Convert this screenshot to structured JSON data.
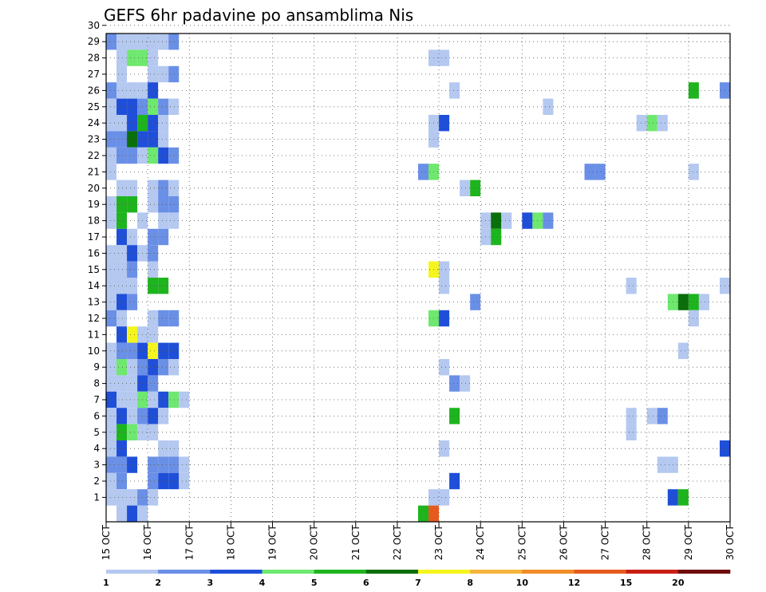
{
  "chart_data": {
    "type": "heatmap",
    "title": "GEFS 6hr padavine po ansamblima Nis",
    "xlabel": "",
    "ylabel": "",
    "x_ticks": [
      "15 OCT",
      "16 OCT",
      "17 OCT",
      "18 OCT",
      "19 OCT",
      "20 OCT",
      "21 OCT",
      "22 OCT",
      "23 OCT",
      "24 OCT",
      "25 OCT",
      "26 OCT",
      "27 OCT",
      "28 OCT",
      "29 OCT",
      "30 OCT"
    ],
    "y_ticks": [
      "1",
      "2",
      "3",
      "4",
      "5",
      "6",
      "7",
      "8",
      "9",
      "10",
      "11",
      "12",
      "13",
      "14",
      "15",
      "16",
      "17",
      "18",
      "19",
      "20",
      "21",
      "22",
      "23",
      "24",
      "25",
      "26",
      "27",
      "28",
      "29",
      "30"
    ],
    "xlim": [
      0,
      60
    ],
    "ylim": [
      0,
      30
    ],
    "grid": true,
    "legend_placement": "bottom",
    "colorbar": {
      "labels": [
        "1",
        "2",
        "3",
        "4",
        "5",
        "6",
        "7",
        "8",
        "10",
        "12",
        "15",
        "20"
      ],
      "colors": [
        "#b4c8f0",
        "#6a8fe6",
        "#1f4fd8",
        "#6ee86e",
        "#1eb41e",
        "#0a6e0a",
        "#f5f51e",
        "#f5b43c",
        "#f08c28",
        "#e65a1e",
        "#c81e14",
        "#6e0a0a"
      ]
    },
    "cells": [
      [
        0,
        29,
        1
      ],
      [
        1,
        29,
        1
      ],
      [
        2,
        29,
        2
      ],
      [
        3,
        29,
        2
      ],
      [
        4,
        29,
        3
      ],
      [
        5,
        29,
        2
      ],
      [
        6,
        29,
        1
      ],
      [
        0,
        28,
        2
      ],
      [
        1,
        28,
        1
      ],
      [
        2,
        28,
        1
      ],
      [
        3,
        28,
        1
      ],
      [
        4,
        28,
        1
      ],
      [
        5,
        28,
        1
      ],
      [
        6,
        28,
        2
      ],
      [
        1,
        27,
        1
      ],
      [
        2,
        27,
        4
      ],
      [
        3,
        27,
        4
      ],
      [
        4,
        27,
        1
      ],
      [
        31,
        27,
        1
      ],
      [
        32,
        27,
        1
      ],
      [
        1,
        26,
        1
      ],
      [
        4,
        26,
        1
      ],
      [
        5,
        26,
        1
      ],
      [
        6,
        26,
        2
      ],
      [
        0,
        25,
        2
      ],
      [
        1,
        25,
        1
      ],
      [
        2,
        25,
        1
      ],
      [
        3,
        25,
        1
      ],
      [
        4,
        25,
        3
      ],
      [
        33,
        25,
        1
      ],
      [
        56,
        25,
        5
      ],
      [
        59,
        25,
        2
      ],
      [
        0,
        24,
        1
      ],
      [
        1,
        24,
        3
      ],
      [
        2,
        24,
        3
      ],
      [
        3,
        24,
        2
      ],
      [
        4,
        24,
        4
      ],
      [
        5,
        24,
        2
      ],
      [
        6,
        24,
        1
      ],
      [
        42,
        24,
        1
      ],
      [
        0,
        23,
        1
      ],
      [
        1,
        23,
        1
      ],
      [
        2,
        23,
        3
      ],
      [
        3,
        23,
        5
      ],
      [
        4,
        23,
        3
      ],
      [
        5,
        23,
        1
      ],
      [
        31,
        23,
        1
      ],
      [
        32,
        23,
        3
      ],
      [
        51,
        23,
        1
      ],
      [
        52,
        23,
        4
      ],
      [
        53,
        23,
        1
      ],
      [
        0,
        22,
        2
      ],
      [
        1,
        22,
        2
      ],
      [
        2,
        22,
        6
      ],
      [
        3,
        22,
        3
      ],
      [
        4,
        22,
        3
      ],
      [
        5,
        22,
        1
      ],
      [
        31,
        22,
        1
      ],
      [
        0,
        21,
        1
      ],
      [
        1,
        21,
        2
      ],
      [
        2,
        21,
        2
      ],
      [
        3,
        21,
        1
      ],
      [
        4,
        21,
        4
      ],
      [
        5,
        21,
        3
      ],
      [
        6,
        21,
        2
      ],
      [
        0,
        20,
        1
      ],
      [
        30,
        20,
        2
      ],
      [
        31,
        20,
        4
      ],
      [
        46,
        20,
        2
      ],
      [
        47,
        20,
        2
      ],
      [
        56,
        20,
        1
      ],
      [
        1,
        19,
        1
      ],
      [
        2,
        19,
        1
      ],
      [
        4,
        19,
        1
      ],
      [
        5,
        19,
        2
      ],
      [
        6,
        19,
        1
      ],
      [
        34,
        19,
        1
      ],
      [
        35,
        19,
        5
      ],
      [
        0,
        18,
        1
      ],
      [
        1,
        18,
        5
      ],
      [
        2,
        18,
        5
      ],
      [
        4,
        18,
        1
      ],
      [
        5,
        18,
        2
      ],
      [
        6,
        18,
        2
      ],
      [
        0,
        17,
        1
      ],
      [
        1,
        17,
        5
      ],
      [
        3,
        17,
        1
      ],
      [
        5,
        17,
        1
      ],
      [
        6,
        17,
        1
      ],
      [
        36,
        17,
        1
      ],
      [
        37,
        17,
        6
      ],
      [
        38,
        17,
        1
      ],
      [
        40,
        17,
        3
      ],
      [
        41,
        17,
        4
      ],
      [
        42,
        17,
        2
      ],
      [
        1,
        16,
        3
      ],
      [
        2,
        16,
        1
      ],
      [
        4,
        16,
        2
      ],
      [
        5,
        16,
        2
      ],
      [
        36,
        16,
        1
      ],
      [
        37,
        16,
        5
      ],
      [
        0,
        15,
        1
      ],
      [
        1,
        15,
        1
      ],
      [
        2,
        15,
        3
      ],
      [
        3,
        15,
        1
      ],
      [
        4,
        15,
        2
      ],
      [
        0,
        14,
        1
      ],
      [
        1,
        14,
        1
      ],
      [
        2,
        14,
        2
      ],
      [
        4,
        14,
        1
      ],
      [
        31,
        14,
        7
      ],
      [
        32,
        14,
        1
      ],
      [
        0,
        13,
        1
      ],
      [
        1,
        13,
        1
      ],
      [
        2,
        13,
        1
      ],
      [
        4,
        13,
        5
      ],
      [
        5,
        13,
        5
      ],
      [
        32,
        13,
        1
      ],
      [
        50,
        13,
        1
      ],
      [
        59,
        13,
        1
      ],
      [
        0,
        12,
        1
      ],
      [
        1,
        12,
        3
      ],
      [
        2,
        12,
        2
      ],
      [
        35,
        12,
        2
      ],
      [
        54,
        12,
        4
      ],
      [
        55,
        12,
        6
      ],
      [
        56,
        12,
        5
      ],
      [
        57,
        12,
        1
      ],
      [
        0,
        11,
        2
      ],
      [
        1,
        11,
        1
      ],
      [
        4,
        11,
        1
      ],
      [
        5,
        11,
        2
      ],
      [
        6,
        11,
        2
      ],
      [
        31,
        11,
        4
      ],
      [
        32,
        11,
        3
      ],
      [
        56,
        11,
        1
      ],
      [
        1,
        10,
        3
      ],
      [
        2,
        10,
        7
      ],
      [
        3,
        10,
        1
      ],
      [
        4,
        10,
        1
      ],
      [
        0,
        9,
        1
      ],
      [
        1,
        9,
        2
      ],
      [
        2,
        9,
        2
      ],
      [
        3,
        9,
        3
      ],
      [
        4,
        9,
        7
      ],
      [
        5,
        9,
        3
      ],
      [
        6,
        9,
        3
      ],
      [
        55,
        9,
        1
      ],
      [
        0,
        8,
        1
      ],
      [
        1,
        8,
        4
      ],
      [
        2,
        8,
        1
      ],
      [
        3,
        8,
        2
      ],
      [
        4,
        8,
        3
      ],
      [
        5,
        8,
        2
      ],
      [
        6,
        8,
        1
      ],
      [
        32,
        8,
        1
      ],
      [
        0,
        7,
        1
      ],
      [
        1,
        7,
        1
      ],
      [
        2,
        7,
        1
      ],
      [
        3,
        7,
        3
      ],
      [
        4,
        7,
        2
      ],
      [
        33,
        7,
        2
      ],
      [
        34,
        7,
        1
      ],
      [
        0,
        6,
        3
      ],
      [
        1,
        6,
        1
      ],
      [
        2,
        6,
        1
      ],
      [
        3,
        6,
        4
      ],
      [
        4,
        6,
        1
      ],
      [
        5,
        6,
        3
      ],
      [
        6,
        6,
        4
      ],
      [
        7,
        6,
        1
      ],
      [
        0,
        5,
        1
      ],
      [
        1,
        5,
        3
      ],
      [
        2,
        5,
        1
      ],
      [
        3,
        5,
        2
      ],
      [
        4,
        5,
        3
      ],
      [
        5,
        5,
        1
      ],
      [
        33,
        5,
        5
      ],
      [
        50,
        5,
        1
      ],
      [
        52,
        5,
        1
      ],
      [
        53,
        5,
        2
      ],
      [
        0,
        4,
        1
      ],
      [
        1,
        4,
        5
      ],
      [
        2,
        4,
        4
      ],
      [
        3,
        4,
        1
      ],
      [
        4,
        4,
        1
      ],
      [
        50,
        4,
        1
      ],
      [
        0,
        3,
        1
      ],
      [
        1,
        3,
        3
      ],
      [
        5,
        3,
        1
      ],
      [
        6,
        3,
        1
      ],
      [
        32,
        3,
        1
      ],
      [
        59,
        3,
        3
      ],
      [
        0,
        2,
        2
      ],
      [
        1,
        2,
        2
      ],
      [
        2,
        2,
        3
      ],
      [
        4,
        2,
        2
      ],
      [
        5,
        2,
        2
      ],
      [
        6,
        2,
        2
      ],
      [
        7,
        2,
        1
      ],
      [
        53,
        2,
        1
      ],
      [
        54,
        2,
        1
      ],
      [
        0,
        1,
        1
      ],
      [
        1,
        1,
        2
      ],
      [
        4,
        1,
        2
      ],
      [
        5,
        1,
        3
      ],
      [
        6,
        1,
        3
      ],
      [
        7,
        1,
        1
      ],
      [
        33,
        1,
        3
      ],
      [
        0,
        0,
        1
      ],
      [
        1,
        0,
        1
      ],
      [
        2,
        0,
        1
      ],
      [
        3,
        0,
        2
      ],
      [
        4,
        0,
        1
      ],
      [
        31,
        0,
        1
      ],
      [
        32,
        0,
        1
      ],
      [
        54,
        0,
        3
      ],
      [
        55,
        0,
        5
      ],
      [
        1,
        -1,
        1
      ],
      [
        2,
        -1,
        3
      ],
      [
        3,
        -1,
        1
      ],
      [
        30,
        -1,
        5
      ],
      [
        31,
        -1,
        10
      ]
    ]
  }
}
